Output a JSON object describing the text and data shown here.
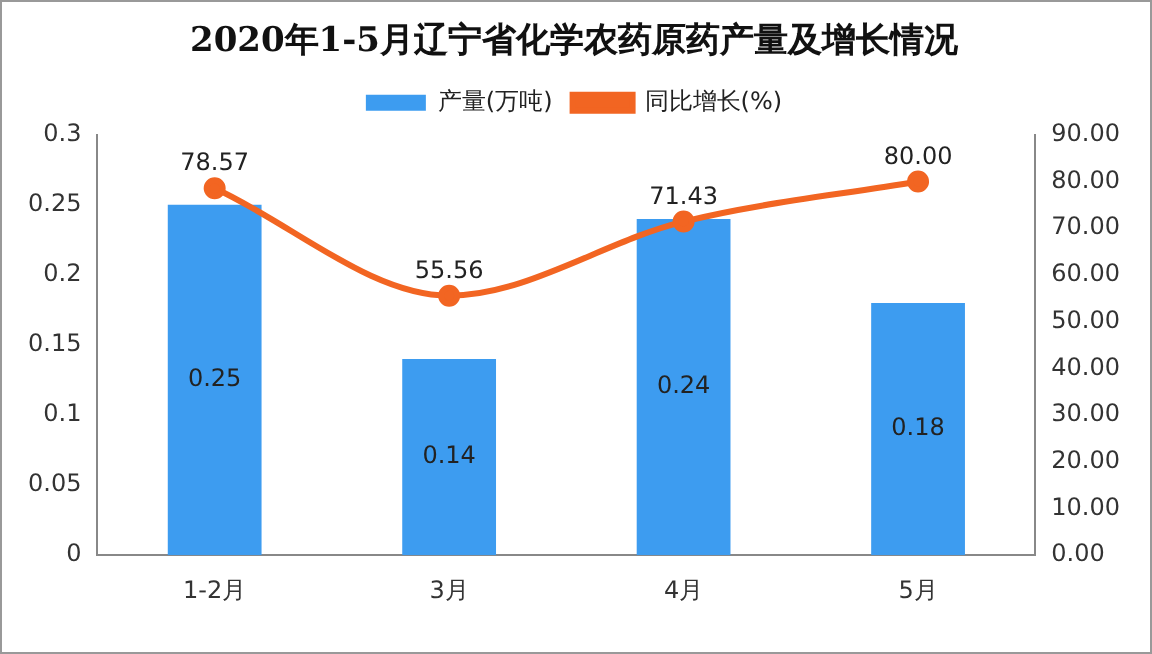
{
  "chart_data": {
    "type": "bar",
    "title": "2020年1-5月辽宁省化学农药原药产量及增长情况",
    "categories": [
      "1-2月",
      "3月",
      "4月",
      "5月"
    ],
    "series": [
      {
        "name": "产量(万吨)",
        "color": "#3d9cf0",
        "values": [
          0.25,
          0.14,
          0.24,
          0.18
        ],
        "value_labels": [
          "0.25",
          "0.14",
          "0.24",
          "0.18"
        ]
      },
      {
        "type": "line",
        "name": "同比增长(%)",
        "color": "#f26522",
        "axis": "y2",
        "values": [
          78.57,
          55.56,
          71.43,
          80.0
        ],
        "value_labels": [
          "78.57",
          "55.56",
          "71.43",
          "80.00"
        ]
      }
    ],
    "ylim": [
      0,
      0.3
    ],
    "yticks": [
      0,
      0.05,
      0.1,
      0.15,
      0.2,
      0.25,
      0.3
    ],
    "y2lim": [
      0,
      90
    ],
    "y2ticks": [
      {
        "value": 0,
        "label": "0.00"
      },
      {
        "value": 10,
        "label": "10.00"
      },
      {
        "value": 20,
        "label": "20.00"
      },
      {
        "value": 30,
        "label": "30.00"
      },
      {
        "value": 40,
        "label": "40.00"
      },
      {
        "value": 50,
        "label": "50.00"
      },
      {
        "value": 60,
        "label": "60.00"
      },
      {
        "value": 70,
        "label": "70.00"
      },
      {
        "value": 80,
        "label": "80.00"
      },
      {
        "value": 90,
        "label": "90.00"
      }
    ],
    "legend": "top",
    "marker": "circle",
    "grid": false
  }
}
